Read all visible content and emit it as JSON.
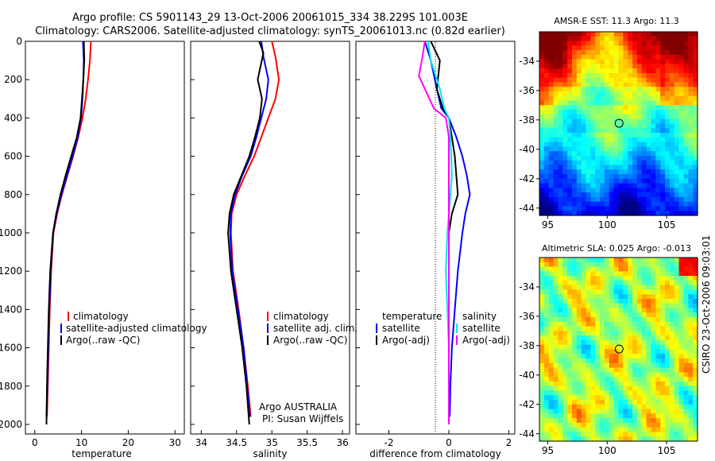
{
  "header": {
    "line1": "Argo profile: CS 5901143_29 13-Oct-2006 20061015_334 38.229S 101.003E",
    "line2": "Climatology: CARS2006. Satellite-adjusted climatology: synTS_20061013.nc (0.82d earlier)"
  },
  "colors": {
    "climatology": "#ff0000",
    "satellite": "#0000ff",
    "argo": "#000000",
    "satellite_salinity": "#00e5ee",
    "argo_salinity": "#ff00ff"
  },
  "chart_data": [
    {
      "type": "line",
      "id": "temperature",
      "xlabel": "temperature",
      "ylabel": "",
      "xlim": [
        -2,
        32
      ],
      "ylim": [
        2050,
        0
      ],
      "xticks": [
        "0",
        "10",
        "20",
        "30"
      ],
      "yticks": [
        "0",
        "200",
        "400",
        "600",
        "800",
        "1000",
        "1200",
        "1400",
        "1600",
        "1800",
        "2000"
      ],
      "legend": [
        "climatology",
        "satellite-adjusted climatology",
        "Argo(..raw -QC)"
      ],
      "series": [
        {
          "name": "climatology",
          "color": "#ff0000",
          "x": [
            12,
            11.8,
            11.4,
            10.9,
            10.2,
            9.3,
            8.2,
            7.0,
            5.8,
            4.8,
            4.0,
            3.5,
            3.2,
            3.0,
            2.8,
            2.6
          ],
          "y": [
            0,
            100,
            200,
            300,
            400,
            500,
            600,
            700,
            800,
            900,
            1000,
            1200,
            1400,
            1600,
            1800,
            1960
          ]
        },
        {
          "name": "satellite-adjusted climatology",
          "color": "#0000ff",
          "x": [
            10.3,
            10.5,
            10.4,
            10.2,
            9.9,
            9.2,
            8.1,
            6.9,
            5.7,
            4.7,
            3.9,
            3.4,
            3.1,
            2.9,
            2.7,
            2.5
          ],
          "y": [
            0,
            100,
            200,
            300,
            400,
            500,
            600,
            700,
            800,
            900,
            1000,
            1200,
            1400,
            1600,
            1800,
            1960
          ]
        },
        {
          "name": "Argo(..raw -QC)",
          "color": "#000000",
          "x": [
            10.5,
            10.6,
            10.4,
            10.1,
            9.8,
            9.0,
            7.8,
            6.6,
            5.5,
            4.6,
            3.9,
            3.3,
            3.0,
            2.8,
            2.6,
            2.5
          ],
          "y": [
            0,
            100,
            200,
            300,
            400,
            500,
            600,
            700,
            800,
            900,
            1000,
            1200,
            1400,
            1600,
            1800,
            2000
          ]
        }
      ]
    },
    {
      "type": "line",
      "id": "salinity",
      "xlabel": "salinity",
      "ylabel": "",
      "xlim": [
        33.85,
        36.1
      ],
      "ylim": [
        2050,
        0
      ],
      "xticks": [
        "34",
        "34.5",
        "35",
        "35.5",
        "36"
      ],
      "legend": [
        "climatology",
        "satellite adj. clim.",
        "Argo(..raw -QC)"
      ],
      "annotation": [
        "Argo AUSTRALIA",
        "PI: Susan Wijffels"
      ],
      "series": [
        {
          "name": "climatology",
          "color": "#ff0000",
          "x": [
            35.0,
            35.05,
            35.1,
            35.05,
            34.95,
            34.85,
            34.75,
            34.62,
            34.5,
            34.43,
            34.42,
            34.45,
            34.53,
            34.6,
            34.66,
            34.7
          ],
          "y": [
            0,
            80,
            200,
            300,
            400,
            500,
            600,
            700,
            800,
            900,
            1000,
            1200,
            1400,
            1600,
            1800,
            1960
          ]
        },
        {
          "name": "satellite adj. clim.",
          "color": "#0000ff",
          "x": [
            34.85,
            34.88,
            34.95,
            34.92,
            34.85,
            34.78,
            34.7,
            34.58,
            34.48,
            34.42,
            34.41,
            34.44,
            34.52,
            34.6,
            34.65,
            34.69
          ],
          "y": [
            0,
            80,
            200,
            300,
            400,
            500,
            600,
            700,
            800,
            900,
            1000,
            1200,
            1400,
            1600,
            1800,
            1960
          ]
        },
        {
          "name": "Argo(..raw -QC)",
          "color": "#000000",
          "x": [
            34.82,
            34.88,
            34.8,
            34.86,
            34.83,
            34.76,
            34.68,
            34.57,
            34.46,
            34.4,
            34.38,
            34.42,
            34.5,
            34.58,
            34.64,
            34.68
          ],
          "y": [
            0,
            60,
            200,
            300,
            400,
            500,
            600,
            700,
            800,
            900,
            1000,
            1200,
            1400,
            1600,
            1800,
            2000
          ]
        }
      ]
    },
    {
      "type": "line",
      "id": "difference",
      "xlabel": "difference from climatology",
      "ylabel": "",
      "xlim": [
        -3.1,
        2.2
      ],
      "ylim": [
        2050,
        0
      ],
      "xticks": [
        "-2",
        "0",
        "2"
      ],
      "legend_temperature": [
        "temperature",
        "satellite",
        "Argo(-adj)"
      ],
      "legend_salinity": [
        "salinity",
        "satellite",
        "Argo(-adj)"
      ],
      "series": [
        {
          "name": "temperature satellite",
          "color": "#0000ff",
          "x": [
            -0.8,
            -0.6,
            -0.4,
            -0.25,
            0.0,
            0.25,
            0.45,
            0.6,
            0.7,
            0.55,
            0.45,
            0.3,
            0.2,
            0.1,
            0.05,
            0.03
          ],
          "y": [
            0,
            100,
            250,
            350,
            400,
            500,
            600,
            700,
            800,
            900,
            1000,
            1200,
            1400,
            1600,
            1800,
            1960
          ]
        },
        {
          "name": "temperature Argo(-adj)",
          "color": "#000000",
          "x": [
            -0.6,
            -0.3,
            -0.4,
            -0.2,
            0.0,
            0.1,
            0.2,
            0.25,
            0.3,
            0.1,
            0.0,
            0.0,
            0.0,
            0.0,
            0.0,
            0.0
          ],
          "y": [
            0,
            100,
            250,
            350,
            400,
            500,
            600,
            700,
            800,
            900,
            1000,
            1200,
            1400,
            1600,
            1800,
            2000
          ]
        },
        {
          "name": "salinity satellite",
          "color": "#00e5ee",
          "x": [
            -0.7,
            -0.6,
            -0.3,
            -0.15,
            0.0,
            0.05,
            0.08,
            0.1,
            0.05,
            0.0,
            -0.05,
            -0.1,
            -0.05,
            0.0,
            0.0,
            0.0
          ],
          "y": [
            0,
            100,
            250,
            350,
            400,
            500,
            600,
            700,
            800,
            900,
            1000,
            1200,
            1400,
            1600,
            1800,
            1960
          ]
        },
        {
          "name": "salinity Argo(-adj)",
          "color": "#ff00ff",
          "x": [
            -0.8,
            -0.9,
            -1.0,
            -0.5,
            -0.1,
            0.0,
            0.0,
            0.0,
            0.0,
            0.0,
            0.0,
            0.0,
            0.0,
            0.0,
            0.0,
            0.0
          ],
          "y": [
            0,
            100,
            180,
            350,
            400,
            500,
            600,
            700,
            800,
            900,
            1000,
            1200,
            1400,
            1600,
            1800,
            2000
          ]
        }
      ]
    },
    {
      "type": "heatmap",
      "id": "sst",
      "title": "AMSR-E SST: 11.3 Argo: 11.3",
      "xticks": [
        "95",
        "100",
        "105"
      ],
      "yticks": [
        "-34",
        "-36",
        "-38",
        "-40",
        "-42",
        "-44"
      ],
      "xlim": [
        94.3,
        107.6
      ],
      "ylim": [
        -44.5,
        -32.0
      ],
      "float_position": [
        101.003,
        -38.229
      ]
    },
    {
      "type": "heatmap",
      "id": "sla",
      "title": "Altimetric SLA: 0.025 Argo: -0.013",
      "xticks": [
        "95",
        "100",
        "105"
      ],
      "yticks": [
        "-34",
        "-36",
        "-38",
        "-40",
        "-42",
        "-44"
      ],
      "xlim": [
        94.3,
        107.6
      ],
      "ylim": [
        -44.5,
        -32.0
      ],
      "float_position": [
        101.003,
        -38.229
      ]
    }
  ],
  "footer": {
    "side_text": "CSIRO 23-Oct-2006 09:03:01"
  }
}
